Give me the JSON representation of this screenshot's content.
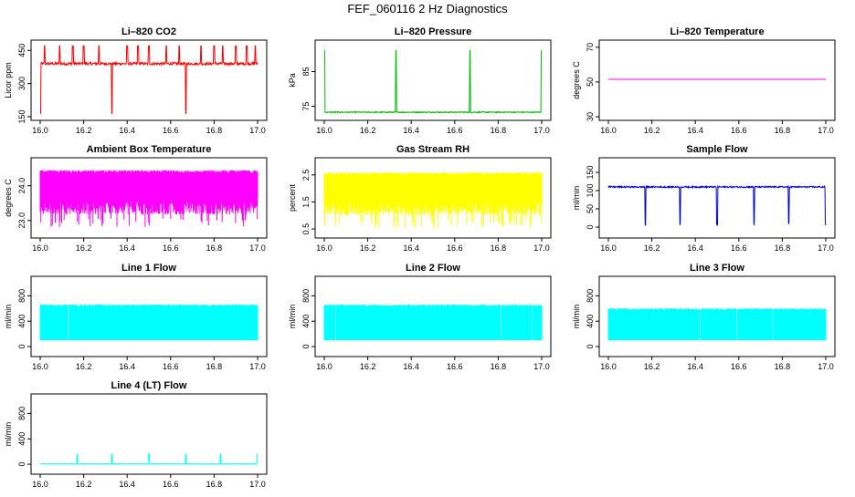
{
  "figure": {
    "title": "FEF_060116  2 Hz Diagnostics"
  },
  "x_ticks": [
    "16.0",
    "16.2",
    "16.4",
    "16.6",
    "16.8",
    "17.0"
  ],
  "chart_data": [
    {
      "type": "line",
      "title": "Li–820 CO2",
      "ylabel": "Licor ppm",
      "color": "#ff0000",
      "xlim": [
        16.0,
        17.0
      ],
      "ylim": [
        150,
        480
      ],
      "yticks": [
        "150",
        "300",
        "450"
      ],
      "pattern": "baseline-spikes",
      "baseline": 390,
      "noise": 6,
      "spikes_up": [
        16.02,
        16.09,
        16.15,
        16.2,
        16.27,
        16.33,
        16.4,
        16.45,
        16.5,
        16.58,
        16.64,
        16.67,
        16.74,
        16.8,
        16.84,
        16.9,
        16.95,
        16.99
      ],
      "spike_up_to": 470,
      "spikes_down": [
        16.0,
        16.33,
        16.67
      ],
      "spike_down_to": 165
    },
    {
      "type": "line",
      "title": "Li–820 Pressure",
      "ylabel": "kPa",
      "color": "#00bb00",
      "xlim": [
        16.0,
        17.0
      ],
      "ylim": [
        72,
        93
      ],
      "yticks": [
        "75",
        "85"
      ],
      "pattern": "baseline-spikes",
      "baseline": 73.3,
      "noise": 0.15,
      "spikes_up": [
        16.0,
        16.33,
        16.67,
        17.0
      ],
      "spike_up_to": 91
    },
    {
      "type": "line",
      "title": "Li–820 Temperature",
      "ylabel": "degrees C",
      "color": "#ff00ff",
      "xlim": [
        16.0,
        17.0
      ],
      "ylim": [
        30,
        72
      ],
      "yticks": [
        "30",
        "50",
        "70"
      ],
      "pattern": "flat",
      "baseline": 51.5
    },
    {
      "type": "line",
      "title": "Ambient Box Temperature",
      "ylabel": "degrees C",
      "color": "#ff00ff",
      "xlim": [
        16.0,
        17.0
      ],
      "ylim": [
        22.6,
        24.7
      ],
      "yticks": [
        "23.0",
        "24.0"
      ],
      "pattern": "noise-band",
      "band_top": 24.45,
      "band_bottom": 23.65,
      "dip_to": 22.8
    },
    {
      "type": "line",
      "title": "Gas Stream RH",
      "ylabel": "percent",
      "color": "#ffff00",
      "xlim": [
        16.0,
        17.0
      ],
      "ylim": [
        0.3,
        3.0
      ],
      "yticks": [
        "0.5",
        "1.5",
        "2.5"
      ],
      "pattern": "noise-band",
      "band_top": 2.6,
      "band_bottom": 1.6,
      "dip_to": 0.5
    },
    {
      "type": "line",
      "title": "Sample Flow",
      "ylabel": "ml/min",
      "color": "#0000cc",
      "xlim": [
        16.0,
        17.0
      ],
      "ylim": [
        -20,
        180
      ],
      "yticks": [
        "0",
        "50",
        "100",
        "150"
      ],
      "pattern": "baseline-dips",
      "baseline": 110,
      "noise": 2,
      "dips": [
        16.17,
        16.33,
        16.5,
        16.67,
        16.83,
        17.0
      ],
      "dip_to": 3
    },
    {
      "type": "line",
      "title": "Line 1 Flow",
      "ylabel": "ml/min",
      "color": "#00ffff",
      "xlim": [
        16.0,
        17.0
      ],
      "ylim": [
        -100,
        1050
      ],
      "yticks": [
        "0",
        "400",
        "800"
      ],
      "pattern": "square-band",
      "band_top": 650,
      "band_bottom": 100,
      "gaps": 6
    },
    {
      "type": "line",
      "title": "Line 2 Flow",
      "ylabel": "ml/min",
      "color": "#00ffff",
      "xlim": [
        16.0,
        17.0
      ],
      "ylim": [
        -100,
        1050
      ],
      "yticks": [
        "0",
        "400",
        "800"
      ],
      "pattern": "square-band",
      "band_top": 650,
      "band_bottom": 100,
      "gaps": 14
    },
    {
      "type": "line",
      "title": "Line 3 Flow",
      "ylabel": "ml/min",
      "color": "#00ffff",
      "xlim": [
        16.0,
        17.0
      ],
      "ylim": [
        -100,
        1050
      ],
      "yticks": [
        "0",
        "400",
        "800"
      ],
      "pattern": "square-band",
      "band_top": 590,
      "band_bottom": 100,
      "gaps": 18
    },
    {
      "type": "line",
      "title": "Line 4 (LT) Flow",
      "ylabel": "ml/min",
      "color": "#00ffff",
      "xlim": [
        16.0,
        17.0
      ],
      "ylim": [
        -100,
        1050
      ],
      "yticks": [
        "0",
        "400",
        "800"
      ],
      "pattern": "baseline-spikes",
      "baseline": 5,
      "noise": 3,
      "spikes_up": [
        16.17,
        16.33,
        16.5,
        16.67,
        16.83,
        17.0
      ],
      "spike_up_to": 160
    }
  ]
}
